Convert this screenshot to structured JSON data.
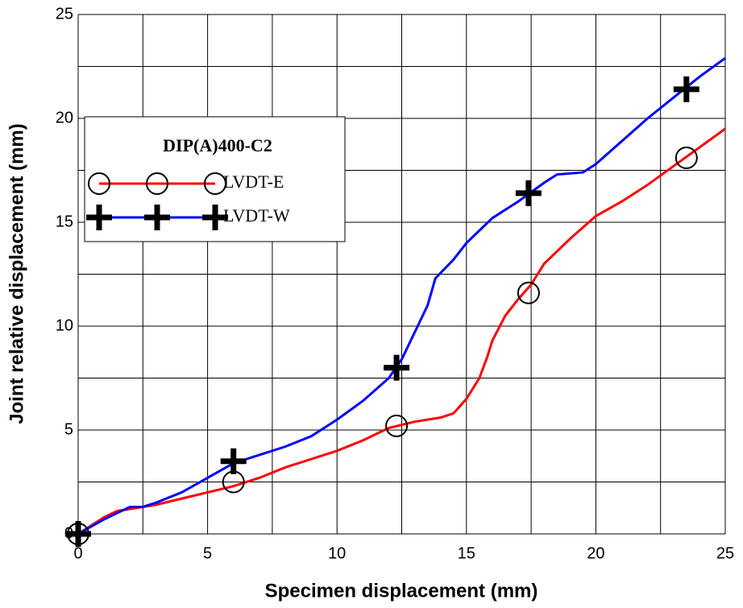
{
  "chart_data": {
    "type": "line",
    "xlabel": "Specimen displacement (mm)",
    "ylabel": "Joint relative displacement (mm)",
    "legend_title": "DIP(A)400-C2",
    "xlim": [
      0,
      25
    ],
    "ylim": [
      0,
      25
    ],
    "xticks": [
      0,
      5,
      10,
      15,
      20,
      25
    ],
    "yticks": [
      0,
      5,
      10,
      15,
      20,
      25
    ],
    "minor_xticks": [
      2.5,
      7.5,
      12.5,
      17.5,
      22.5
    ],
    "minor_yticks": [
      2.5,
      7.5,
      12.5,
      17.5,
      22.5
    ],
    "grid": true,
    "legend": "upper left",
    "series": [
      {
        "name": "LVDT-E",
        "color": "#ff0000",
        "marker": "circle",
        "x": [
          0,
          1,
          1.5,
          2.5,
          3,
          4,
          5,
          6,
          7,
          8,
          9,
          10,
          11,
          12,
          13,
          14,
          14.5,
          15,
          15.5,
          15.8,
          16,
          16.5,
          17,
          17.5,
          18,
          19,
          20,
          21,
          22,
          23,
          24,
          25
        ],
        "values": [
          0,
          0.8,
          1.1,
          1.3,
          1.4,
          1.7,
          2.0,
          2.3,
          2.7,
          3.2,
          3.6,
          4.0,
          4.5,
          5.1,
          5.4,
          5.6,
          5.8,
          6.5,
          7.5,
          8.5,
          9.3,
          10.5,
          11.3,
          12.0,
          13.0,
          14.2,
          15.3,
          16.0,
          16.8,
          17.7,
          18.6,
          19.5
        ],
        "markers": {
          "x": [
            0,
            6,
            12.3,
            17.4,
            23.5
          ],
          "values": [
            0,
            2.5,
            5.2,
            11.6,
            18.1
          ]
        }
      },
      {
        "name": "LVDT-W",
        "color": "#0000ff",
        "marker": "plus",
        "x": [
          0,
          1,
          1.5,
          2,
          2.5,
          3,
          4,
          5,
          6,
          7,
          8,
          9,
          10,
          11,
          12,
          12.5,
          13,
          13.5,
          13.8,
          14.5,
          15,
          16,
          17,
          18,
          18.5,
          19.5,
          20,
          21,
          22,
          23,
          24,
          25
        ],
        "values": [
          0,
          0.7,
          1.0,
          1.3,
          1.3,
          1.5,
          2.0,
          2.7,
          3.4,
          3.8,
          4.2,
          4.7,
          5.5,
          6.4,
          7.5,
          8.4,
          9.7,
          11.0,
          12.3,
          13.2,
          14.0,
          15.2,
          16.0,
          16.9,
          17.3,
          17.4,
          17.8,
          18.9,
          20.0,
          21.0,
          22.0,
          22.9
        ],
        "markers": {
          "x": [
            0,
            6,
            12.3,
            17.4,
            23.5
          ],
          "values": [
            0,
            3.5,
            8.0,
            16.4,
            21.4
          ]
        }
      }
    ]
  }
}
